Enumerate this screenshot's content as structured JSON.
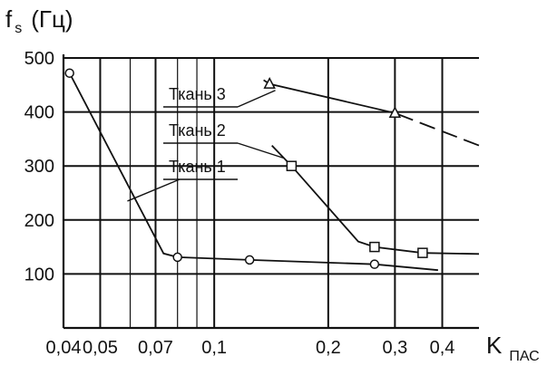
{
  "chart_data": {
    "type": "line",
    "xscale": "log",
    "xlim": [
      0.04,
      0.5
    ],
    "ylim": [
      0,
      500
    ],
    "grid": true,
    "ylabel_main": "f",
    "ylabel_sub": "s",
    "ylabel_unit": "(Гц)",
    "xlabel_main": "K",
    "xlabel_sub": "ПАС",
    "x_major_ticks": [
      {
        "value": 0.04,
        "label": "0,04"
      },
      {
        "value": 0.05,
        "label": "0,05"
      },
      {
        "value": 0.07,
        "label": "0,07"
      },
      {
        "value": 0.1,
        "label": "0,1"
      },
      {
        "value": 0.2,
        "label": "0,2"
      },
      {
        "value": 0.3,
        "label": "0,3"
      },
      {
        "value": 0.4,
        "label": "0,4"
      }
    ],
    "x_minor_ticks": [
      0.06,
      0.08,
      0.09
    ],
    "y_ticks": [
      {
        "value": 100,
        "label": "100"
      },
      {
        "value": 200,
        "label": "200"
      },
      {
        "value": 300,
        "label": "300"
      },
      {
        "value": 400,
        "label": "400"
      },
      {
        "value": 500,
        "label": "500"
      }
    ],
    "series": [
      {
        "name": "Ткань 1",
        "marker": "circle",
        "points": [
          [
            0.0415,
            472
          ],
          [
            0.08,
            131
          ],
          [
            0.124,
            126
          ],
          [
            0.265,
            118
          ]
        ],
        "curve": [
          [
            0.0415,
            472
          ],
          [
            0.0735,
            138
          ],
          [
            0.08,
            131
          ],
          [
            0.124,
            126
          ],
          [
            0.265,
            118
          ],
          [
            0.39,
            107
          ]
        ]
      },
      {
        "name": "Ткань 2",
        "marker": "square",
        "points": [
          [
            0.16,
            300
          ],
          [
            0.265,
            150
          ],
          [
            0.355,
            139
          ]
        ],
        "curve": [
          [
            0.142,
            338
          ],
          [
            0.16,
            300
          ],
          [
            0.24,
            160
          ],
          [
            0.265,
            150
          ],
          [
            0.355,
            139
          ],
          [
            0.5,
            137
          ]
        ]
      },
      {
        "name": "Ткань 3",
        "marker": "triangle",
        "points": [
          [
            0.14,
            452
          ],
          [
            0.3,
            398
          ]
        ],
        "curve": [
          [
            0.135,
            459
          ],
          [
            0.14,
            452
          ],
          [
            0.3,
            398
          ],
          [
            0.305,
            396
          ]
        ],
        "dashed_curve": [
          [
            0.305,
            396
          ],
          [
            0.5,
            338
          ]
        ]
      }
    ],
    "annotations": [
      {
        "text": "Ткань 3",
        "series": "Ткань 3"
      },
      {
        "text": "Ткань 2",
        "series": "Ткань 2"
      },
      {
        "text": "Ткань 1",
        "series": "Ткань 1"
      }
    ]
  }
}
